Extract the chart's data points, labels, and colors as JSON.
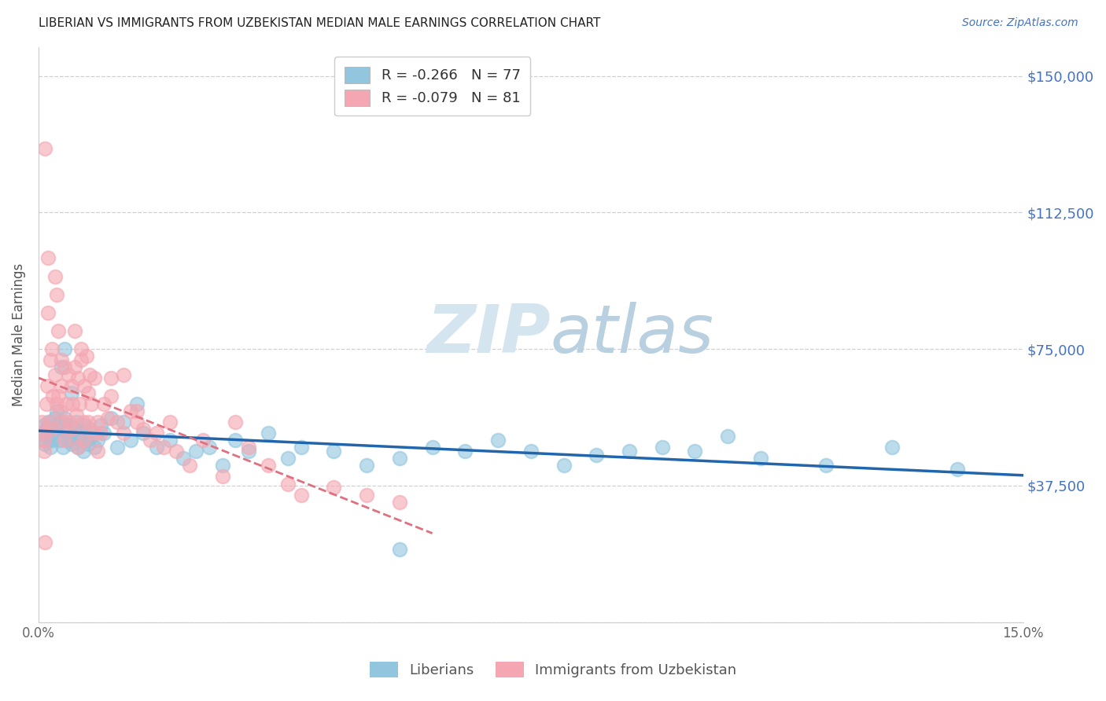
{
  "title": "LIBERIAN VS IMMIGRANTS FROM UZBEKISTAN MEDIAN MALE EARNINGS CORRELATION CHART",
  "source": "Source: ZipAtlas.com",
  "ylabel": "Median Male Earnings",
  "yticks": [
    0,
    37500,
    75000,
    112500,
    150000
  ],
  "ytick_labels": [
    "",
    "$37,500",
    "$75,000",
    "$112,500",
    "$150,000"
  ],
  "xmin": 0.0,
  "xmax": 15.0,
  "ymin": 10000,
  "ymax": 158000,
  "blue_R": -0.266,
  "blue_N": 77,
  "pink_R": -0.079,
  "pink_N": 81,
  "blue_color": "#92c5de",
  "pink_color": "#f4a7b2",
  "blue_line_color": "#2166ac",
  "pink_line_color": "#e07080",
  "watermark_color": "#d5e5f0",
  "legend_label_blue": "Liberians",
  "legend_label_pink": "Immigrants from Uzbekistan",
  "blue_x": [
    0.05,
    0.07,
    0.09,
    0.1,
    0.12,
    0.13,
    0.15,
    0.17,
    0.18,
    0.2,
    0.22,
    0.25,
    0.27,
    0.28,
    0.3,
    0.32,
    0.35,
    0.37,
    0.4,
    0.42,
    0.45,
    0.47,
    0.5,
    0.52,
    0.55,
    0.57,
    0.6,
    0.62,
    0.65,
    0.68,
    0.7,
    0.73,
    0.75,
    0.78,
    0.8,
    0.85,
    0.9,
    0.95,
    1.0,
    1.1,
    1.2,
    1.3,
    1.4,
    1.5,
    1.6,
    1.8,
    2.0,
    2.2,
    2.4,
    2.6,
    2.8,
    3.0,
    3.2,
    3.5,
    3.8,
    4.0,
    4.5,
    5.0,
    5.5,
    6.0,
    6.5,
    7.0,
    7.5,
    8.0,
    8.5,
    9.0,
    9.5,
    10.0,
    10.5,
    11.0,
    12.0,
    13.0,
    14.0,
    5.5,
    0.35,
    0.4,
    0.5
  ],
  "blue_y": [
    52000,
    50000,
    54000,
    49000,
    51000,
    53000,
    55000,
    50000,
    48000,
    52000,
    50000,
    56000,
    54000,
    58000,
    53000,
    50000,
    55000,
    48000,
    56000,
    52000,
    50000,
    54000,
    49000,
    51000,
    53000,
    55000,
    48000,
    50000,
    52000,
    47000,
    54000,
    50000,
    49000,
    53000,
    51000,
    48000,
    50000,
    54000,
    52000,
    56000,
    48000,
    55000,
    50000,
    60000,
    52000,
    48000,
    50000,
    45000,
    47000,
    48000,
    43000,
    50000,
    47000,
    52000,
    45000,
    48000,
    47000,
    43000,
    45000,
    48000,
    47000,
    50000,
    47000,
    43000,
    46000,
    47000,
    48000,
    47000,
    51000,
    45000,
    43000,
    48000,
    42000,
    20000,
    70000,
    75000,
    63000
  ],
  "pink_x": [
    0.05,
    0.07,
    0.09,
    0.1,
    0.12,
    0.13,
    0.15,
    0.17,
    0.18,
    0.2,
    0.22,
    0.25,
    0.27,
    0.28,
    0.3,
    0.32,
    0.35,
    0.37,
    0.4,
    0.42,
    0.45,
    0.47,
    0.5,
    0.52,
    0.55,
    0.57,
    0.6,
    0.62,
    0.65,
    0.68,
    0.7,
    0.73,
    0.75,
    0.78,
    0.8,
    0.85,
    0.9,
    0.95,
    1.0,
    1.05,
    1.1,
    1.2,
    1.3,
    1.4,
    1.5,
    1.6,
    1.7,
    1.8,
    1.9,
    2.0,
    2.1,
    2.3,
    2.5,
    2.8,
    3.0,
    3.2,
    3.5,
    3.8,
    4.0,
    4.5,
    5.0,
    5.5,
    0.08,
    0.2,
    0.3,
    0.4,
    0.5,
    0.6,
    0.7,
    0.9,
    1.1,
    1.3,
    1.5,
    0.15,
    0.25,
    0.35,
    0.55,
    0.65,
    0.75,
    0.85,
    0.1
  ],
  "pink_y": [
    55000,
    52000,
    50000,
    130000,
    60000,
    65000,
    85000,
    55000,
    72000,
    75000,
    62000,
    68000,
    90000,
    60000,
    80000,
    58000,
    65000,
    55000,
    70000,
    60000,
    68000,
    55000,
    65000,
    60000,
    70000,
    57000,
    67000,
    60000,
    72000,
    55000,
    65000,
    73000,
    63000,
    68000,
    60000,
    67000,
    55000,
    52000,
    60000,
    56000,
    62000,
    55000,
    52000,
    58000,
    55000,
    53000,
    50000,
    52000,
    48000,
    55000,
    47000,
    43000,
    50000,
    40000,
    55000,
    48000,
    43000,
    38000,
    35000,
    37000,
    35000,
    33000,
    47000,
    53000,
    62000,
    50000,
    53000,
    48000,
    50000,
    47000,
    67000,
    68000,
    58000,
    100000,
    95000,
    72000,
    80000,
    75000,
    55000,
    52000,
    22000
  ]
}
